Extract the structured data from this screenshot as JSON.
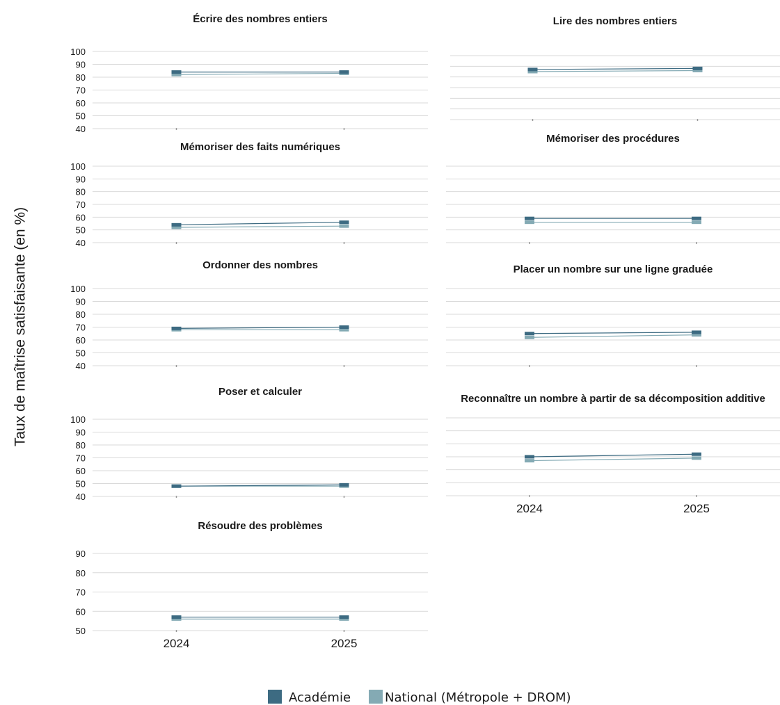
{
  "figure": {
    "ylabel": "Taux de maîtrise satisfaisante (en %)"
  },
  "colors": {
    "academie": "#3d6b82",
    "national": "#84aab4",
    "grid": "#d9d9d9",
    "text": "#1a1a1a"
  },
  "legend": {
    "items": [
      {
        "label": "Académie",
        "color": "#3d6b82"
      },
      {
        "label": "National (Métropole + DROM)",
        "color": "#84aab4"
      }
    ]
  },
  "chart_data": [
    {
      "type": "line",
      "title": "Écrire des nombres entiers",
      "categories": [
        "2024",
        "2025"
      ],
      "ylim": [
        40,
        100
      ],
      "yticks": [
        "100",
        "90",
        "80",
        "70",
        "60",
        "50",
        "40"
      ],
      "show_yticks": true,
      "show_xticks": false,
      "series": [
        {
          "name": "Académie",
          "values": [
            84,
            84
          ]
        },
        {
          "name": "National (Métropole + DROM)",
          "values": [
            82,
            83
          ]
        }
      ]
    },
    {
      "type": "line",
      "title": "Lire des nombres entiers",
      "categories": [
        "2024",
        "2025"
      ],
      "ylim": [
        40,
        100
      ],
      "yticks": [],
      "show_yticks": false,
      "show_xticks": false,
      "series": [
        {
          "name": "Académie",
          "values": [
            87,
            88
          ]
        },
        {
          "name": "National (Métropole + DROM)",
          "values": [
            85,
            86
          ]
        }
      ]
    },
    {
      "type": "line",
      "title": "Mémoriser des faits numériques",
      "categories": [
        "2024",
        "2025"
      ],
      "ylim": [
        40,
        100
      ],
      "yticks": [
        "100",
        "90",
        "80",
        "70",
        "60",
        "50",
        "40"
      ],
      "show_yticks": true,
      "show_xticks": false,
      "series": [
        {
          "name": "Académie",
          "values": [
            54,
            56
          ]
        },
        {
          "name": "National (Métropole + DROM)",
          "values": [
            52,
            53
          ]
        }
      ]
    },
    {
      "type": "line",
      "title": "Mémoriser des procédures",
      "categories": [
        "2024",
        "2025"
      ],
      "ylim": [
        40,
        100
      ],
      "yticks": [],
      "show_yticks": false,
      "show_xticks": false,
      "series": [
        {
          "name": "Académie",
          "values": [
            59,
            59
          ]
        },
        {
          "name": "National (Métropole + DROM)",
          "values": [
            56,
            56
          ]
        }
      ]
    },
    {
      "type": "line",
      "title": "Ordonner des nombres",
      "categories": [
        "2024",
        "2025"
      ],
      "ylim": [
        40,
        100
      ],
      "yticks": [
        "100",
        "90",
        "80",
        "70",
        "60",
        "50",
        "40"
      ],
      "show_yticks": true,
      "show_xticks": false,
      "series": [
        {
          "name": "Académie",
          "values": [
            69,
            70
          ]
        },
        {
          "name": "National (Métropole + DROM)",
          "values": [
            68,
            68
          ]
        }
      ]
    },
    {
      "type": "line",
      "title": "Placer un nombre sur une ligne graduée",
      "categories": [
        "2024",
        "2025"
      ],
      "ylim": [
        40,
        100
      ],
      "yticks": [],
      "show_yticks": false,
      "show_xticks": false,
      "series": [
        {
          "name": "Académie",
          "values": [
            65,
            66
          ]
        },
        {
          "name": "National (Métropole + DROM)",
          "values": [
            62,
            64
          ]
        }
      ]
    },
    {
      "type": "line",
      "title": "Poser et calculer",
      "categories": [
        "2024",
        "2025"
      ],
      "ylim": [
        40,
        100
      ],
      "yticks": [
        "100",
        "90",
        "80",
        "70",
        "60",
        "50",
        "40"
      ],
      "show_yticks": true,
      "show_xticks": false,
      "series": [
        {
          "name": "Académie",
          "values": [
            48,
            49
          ]
        },
        {
          "name": "National (Métropole + DROM)",
          "values": [
            48,
            48
          ]
        }
      ]
    },
    {
      "type": "line",
      "title": "Reconnaître un nombre à partir de sa décomposition additive",
      "categories": [
        "2024",
        "2025"
      ],
      "ylim": [
        40,
        100
      ],
      "yticks": [],
      "show_yticks": false,
      "show_xticks": true,
      "series": [
        {
          "name": "Académie",
          "values": [
            70,
            72
          ]
        },
        {
          "name": "National (Métropole + DROM)",
          "values": [
            67,
            69
          ]
        }
      ]
    },
    {
      "type": "line",
      "title": "Résoudre des problèmes",
      "categories": [
        "2024",
        "2025"
      ],
      "ylim": [
        50,
        90
      ],
      "yticks": [
        "90",
        "80",
        "70",
        "60",
        "50"
      ],
      "show_yticks": true,
      "show_xticks": true,
      "series": [
        {
          "name": "Académie",
          "values": [
            57,
            57
          ]
        },
        {
          "name": "National (Métropole + DROM)",
          "values": [
            56,
            56
          ]
        }
      ]
    }
  ]
}
